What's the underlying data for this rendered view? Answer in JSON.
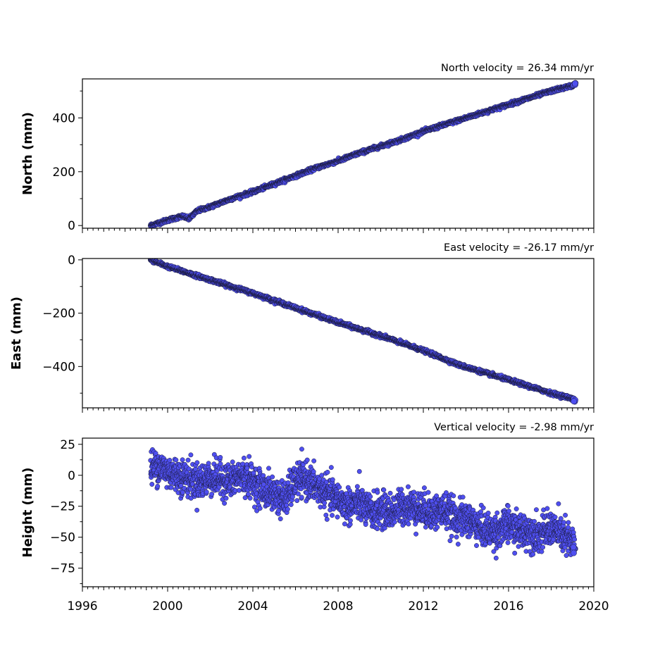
{
  "chart_data": {
    "type": "scatter",
    "x_axis": {
      "range": [
        1996,
        2020
      ],
      "tick_labels": [
        "1996",
        "2000",
        "2004",
        "2008",
        "2012",
        "2016",
        "2020"
      ],
      "tick_values": [
        1996,
        2000,
        2004,
        2008,
        2012,
        2016,
        2020
      ],
      "minor_tick_step_years": 0.25
    },
    "marker_color": "#4f4ff0",
    "marker_edge_color": "#1a1a3a",
    "panels": [
      {
        "title": "North velocity = 26.34 mm/yr",
        "ylabel": "North (mm)",
        "ylim": [
          -10,
          545
        ],
        "yticks": [
          0,
          200,
          400
        ],
        "ytick_labels": [
          "0",
          "200",
          "400"
        ],
        "velocity_mm_per_yr": 26.34,
        "x_span": [
          1999.2,
          2019.1
        ],
        "series": [
          {
            "x": [
              1999.2,
              2000.0,
              2000.7,
              2001.0,
              2001.4,
              2002.0,
              2003.0,
              2004.0,
              2005.0,
              2006.0,
              2007.0,
              2008.0,
              2009.0,
              2010.0,
              2011.0,
              2012.0,
              2013.0,
              2014.0,
              2015.0,
              2016.0,
              2017.0,
              2018.0,
              2019.0,
              2019.1
            ],
            "y": [
              0,
              20,
              35,
              25,
              55,
              70,
              100,
              125,
              155,
              185,
              215,
              240,
              270,
              295,
              320,
              350,
              375,
              400,
              425,
              450,
              475,
              500,
              520,
              525
            ]
          }
        ]
      },
      {
        "title": "East velocity = -26.17 mm/yr",
        "ylabel": "East (mm)",
        "ylim": [
          -555,
          5
        ],
        "yticks": [
          0,
          -200,
          -400
        ],
        "ytick_labels": [
          "0",
          "−200",
          "−400"
        ],
        "velocity_mm_per_yr": -26.17,
        "x_span": [
          1999.2,
          2019.1
        ],
        "series": [
          {
            "x": [
              1999.2,
              2000.0,
              2002.0,
              2004.0,
              2006.0,
              2008.0,
              2010.0,
              2012.0,
              2013.7,
              2016.0,
              2018.0,
              2019.0,
              2019.1
            ],
            "y": [
              0,
              -25,
              -75,
              -125,
              -180,
              -235,
              -285,
              -340,
              -395,
              -450,
              -500,
              -520,
              -530
            ]
          }
        ]
      },
      {
        "title": "Vertical velocity = -2.98 mm/yr",
        "ylabel": "Height (mm)",
        "ylim": [
          -90,
          30
        ],
        "yticks": [
          25,
          0,
          -25,
          -50,
          -75
        ],
        "ytick_labels": [
          "25",
          "0",
          "−25",
          "−50",
          "−75"
        ],
        "velocity_mm_per_yr": -2.98,
        "x_span": [
          1999.2,
          2019.1
        ],
        "series": [
          {
            "x": [
              1999.2,
              1999.5,
              2000.0,
              2000.5,
              2001.0,
              2001.5,
              2002.0,
              2002.5,
              2003.0,
              2003.5,
              2004.0,
              2004.5,
              2005.0,
              2005.5,
              2006.0,
              2006.5,
              2007.0,
              2007.5,
              2008.0,
              2008.5,
              2009.0,
              2009.5,
              2010.0,
              2010.5,
              2011.0,
              2011.5,
              2012.0,
              2012.5,
              2013.0,
              2013.5,
              2014.0,
              2014.5,
              2015.0,
              2015.5,
              2016.0,
              2016.5,
              2017.0,
              2017.5,
              2018.0,
              2018.5,
              2019.0
            ],
            "y": [
              5,
              8,
              3,
              0,
              -3,
              -5,
              -2,
              -3,
              -5,
              0,
              -5,
              -12,
              -15,
              -20,
              -5,
              -3,
              -10,
              -15,
              -20,
              -25,
              -22,
              -30,
              -28,
              -30,
              -25,
              -25,
              -28,
              -30,
              -28,
              -35,
              -35,
              -40,
              -45,
              -45,
              -40,
              -45,
              -45,
              -48,
              -42,
              -48,
              -55
            ]
          }
        ]
      }
    ]
  }
}
